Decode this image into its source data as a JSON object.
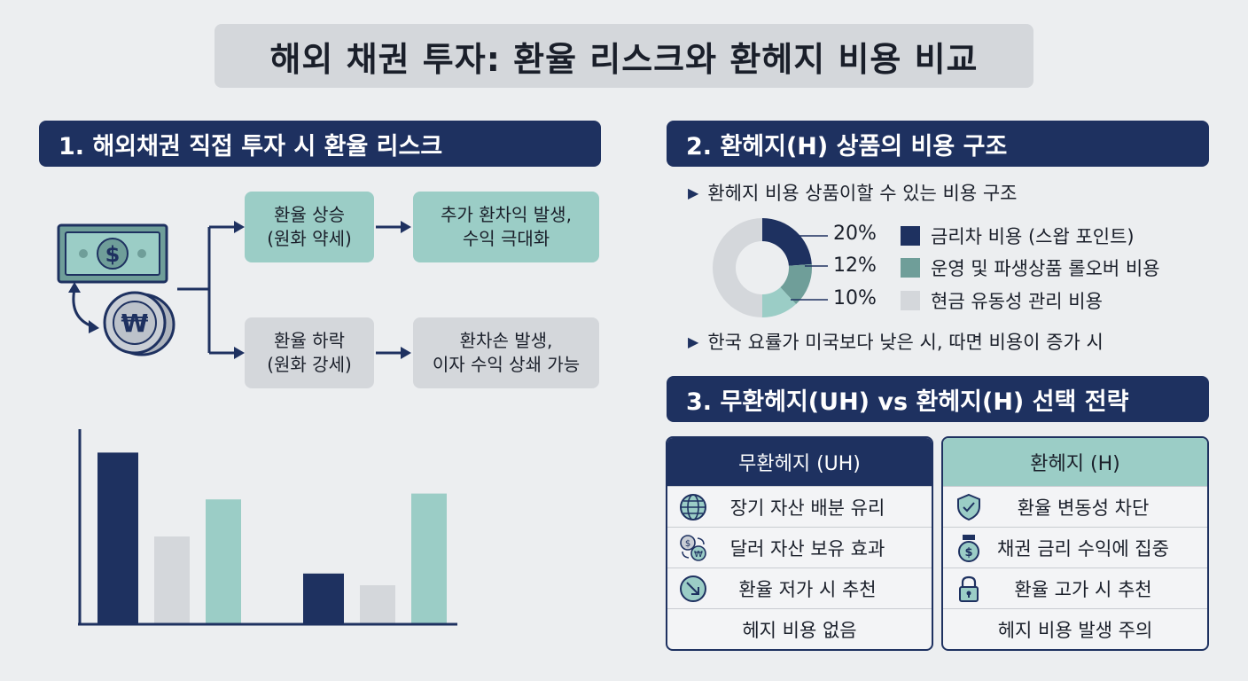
{
  "title": "해외 채권 투자: 환율 리스크와 환헤지 비용 비교",
  "section1": {
    "header": "1. 해외채권 직접 투자 시 환율 리스크",
    "rise": {
      "line1": "환율 상승",
      "line2": "(원화 약세)"
    },
    "rise_outcome": {
      "line1": "추가 환차익 발생,",
      "line2": "수익 극대화"
    },
    "fall": {
      "line1": "환율 하락",
      "line2": "(원화 강세)"
    },
    "fall_outcome": {
      "line1": "환차손 발생,",
      "line2": "이자 수익 상쇄 가능"
    },
    "dollar_symbol": "$",
    "won_symbol": "₩"
  },
  "chart_data": {
    "type": "bar",
    "groups": 2,
    "series_colors": [
      "#1e3160",
      "#d4d7db",
      "#9bcdc6"
    ],
    "series": [
      {
        "values": [
          88,
          26
        ]
      },
      {
        "values": [
          45,
          20
        ]
      },
      {
        "values": [
          64,
          67
        ]
      }
    ],
    "ylim": [
      0,
      100
    ],
    "grid": false
  },
  "section2": {
    "header": "2. 환헤지(H) 상품의 비용 구조",
    "bullet1": "환헤지 비용 상품이할 수 있는 비용 구조",
    "bullet2": "한국 요률가 미국보다 낮은 시, 따면 비용이 증가 시",
    "donut": [
      {
        "pct": "20%",
        "value": 20,
        "color": "#1e3160",
        "label": "금리차 비용 (스왑 포인트)"
      },
      {
        "pct": "12%",
        "value": 12,
        "color": "#6f9e99",
        "label": "운영 및 파생상품 롤오버 비용"
      },
      {
        "pct": "10%",
        "value": 10,
        "color": "#9bcdc6",
        "label": "현금 유동성 관리 비용"
      }
    ],
    "donut_rest_color": "#d4d7db",
    "legend_colors": [
      "#1e3160",
      "#6f9e99",
      "#d4d7db"
    ]
  },
  "section3": {
    "header": "3. 무환헤지(UH) vs 환헤지(H) 선택 전략",
    "uh": {
      "title": "무환헤지 (UH)",
      "rows": [
        "장기 자산 배분 유리",
        "달러 자산 보유 효과",
        "환율 저가 시 추천",
        "헤지 비용 없음"
      ],
      "icons": [
        "globe-icon",
        "currency-exchange-icon",
        "downtrend-arrow-icon"
      ]
    },
    "h": {
      "title": "환헤지 (H)",
      "rows": [
        "환율 변동성 차단",
        "채권 금리 수익에 집중",
        "환율 고가 시 추천",
        "헤지 비용 발생 주의"
      ],
      "icons": [
        "shield-check-icon",
        "money-bag-icon",
        "padlock-icon"
      ]
    },
    "coin_symbols": [
      "$",
      "₩"
    ]
  }
}
